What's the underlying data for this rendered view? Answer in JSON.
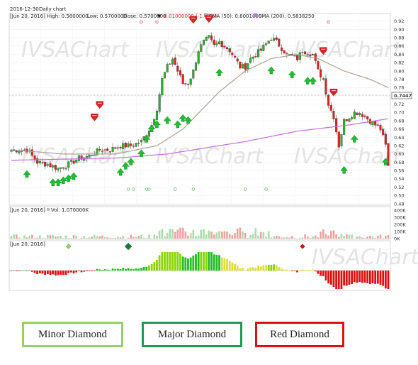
{
  "header": {
    "date": "2016-12-30",
    "period": "Daily chart",
    "panel_date": "[Jun 20, 2016]",
    "high": "High: 0.5800000",
    "low": "Low: 0.5700000",
    "close": "Close: 0.5700000",
    "change": "-0.01000000 (-1.72%)",
    "sma50": "SMA (50): 0.6001000",
    "sma200": "SMA (200): 0.5838250",
    "vol": "Vol: 1.070000K",
    "last_price": "0.7447"
  },
  "watermark": "IVSAChart",
  "colors": {
    "up": "#33aa33",
    "down": "#dd2222",
    "sma50": "#b09f90",
    "sma200": "#c070e0",
    "minor": "#93d067",
    "major": "#1f9a55",
    "red": "#dd1111"
  },
  "legend": [
    {
      "label": "Minor Diamond",
      "color": "#93d067"
    },
    {
      "label": "Major Diamond",
      "color": "#1f9a55"
    },
    {
      "label": "Red Diamond",
      "color": "#dd1111"
    }
  ],
  "chart_data": {
    "type": "candlestick",
    "price_axis": {
      "ylim": [
        0.48,
        0.93
      ],
      "ticks": [
        "0.92",
        "0.90",
        "0.88",
        "0.86",
        "0.84",
        "0.82",
        "0.80",
        "0.78",
        "0.76",
        "0.74",
        "0.72",
        "0.70",
        "0.68",
        "0.66",
        "0.64",
        "0.62",
        "0.60",
        "0.58",
        "0.56",
        "0.54",
        "0.52",
        "0.50",
        "0.48"
      ]
    },
    "volume_axis": {
      "ylim": [
        0,
        400
      ],
      "ticks": [
        "400K",
        "300K",
        "200K",
        "100K",
        "0K"
      ]
    },
    "close_waypoints": [
      [
        0,
        0.61
      ],
      [
        6,
        0.61
      ],
      [
        10,
        0.58
      ],
      [
        14,
        0.575
      ],
      [
        18,
        0.565
      ],
      [
        22,
        0.575
      ],
      [
        26,
        0.59
      ],
      [
        30,
        0.595
      ],
      [
        34,
        0.61
      ],
      [
        38,
        0.61
      ],
      [
        42,
        0.62
      ],
      [
        46,
        0.62
      ],
      [
        50,
        0.63
      ],
      [
        54,
        0.67
      ],
      [
        56,
        0.71
      ],
      [
        58,
        0.78
      ],
      [
        60,
        0.81
      ],
      [
        62,
        0.83
      ],
      [
        64,
        0.8
      ],
      [
        66,
        0.77
      ],
      [
        68,
        0.77
      ],
      [
        70,
        0.8
      ],
      [
        72,
        0.85
      ],
      [
        74,
        0.87
      ],
      [
        76,
        0.88
      ],
      [
        78,
        0.86
      ],
      [
        80,
        0.87
      ],
      [
        84,
        0.85
      ],
      [
        88,
        0.81
      ],
      [
        90,
        0.81
      ],
      [
        92,
        0.83
      ],
      [
        96,
        0.85
      ],
      [
        100,
        0.88
      ],
      [
        102,
        0.87
      ],
      [
        106,
        0.84
      ],
      [
        110,
        0.83
      ],
      [
        112,
        0.85
      ],
      [
        116,
        0.84
      ],
      [
        118,
        0.8
      ],
      [
        120,
        0.78
      ],
      [
        122,
        0.72
      ],
      [
        124,
        0.69
      ],
      [
        126,
        0.62
      ],
      [
        128,
        0.68
      ],
      [
        132,
        0.7
      ],
      [
        134,
        0.7
      ],
      [
        136,
        0.69
      ],
      [
        138,
        0.68
      ],
      [
        140,
        0.67
      ],
      [
        142,
        0.66
      ],
      [
        144,
        0.62
      ],
      [
        145,
        0.57
      ]
    ],
    "sma50_waypoints": [
      [
        0,
        0.61
      ],
      [
        20,
        0.6
      ],
      [
        40,
        0.6
      ],
      [
        56,
        0.62
      ],
      [
        66,
        0.66
      ],
      [
        80,
        0.75
      ],
      [
        90,
        0.8
      ],
      [
        100,
        0.83
      ],
      [
        110,
        0.84
      ],
      [
        118,
        0.83
      ],
      [
        128,
        0.8
      ],
      [
        138,
        0.78
      ],
      [
        145,
        0.76
      ]
    ],
    "sma200_waypoints": [
      [
        0,
        0.585
      ],
      [
        40,
        0.59
      ],
      [
        60,
        0.6
      ],
      [
        90,
        0.63
      ],
      [
        110,
        0.655
      ],
      [
        130,
        0.67
      ],
      [
        145,
        0.685
      ]
    ],
    "green_arrow_positions": [
      [
        6,
        0.55
      ],
      [
        16,
        0.53
      ],
      [
        18,
        0.53
      ],
      [
        20,
        0.535
      ],
      [
        22,
        0.54
      ],
      [
        24,
        0.545
      ],
      [
        42,
        0.555
      ],
      [
        44,
        0.57
      ],
      [
        46,
        0.58
      ],
      [
        50,
        0.6
      ],
      [
        52,
        0.635
      ],
      [
        54,
        0.66
      ],
      [
        56,
        0.67
      ],
      [
        60,
        0.68
      ],
      [
        64,
        0.67
      ],
      [
        66,
        0.685
      ],
      [
        68,
        0.68
      ],
      [
        80,
        0.795
      ],
      [
        100,
        0.8
      ],
      [
        108,
        0.79
      ],
      [
        114,
        0.775
      ],
      [
        116,
        0.775
      ],
      [
        128,
        0.56
      ],
      [
        132,
        0.635
      ],
      [
        144,
        0.58
      ]
    ],
    "red_arrow_positions": [
      [
        32,
        0.69
      ],
      [
        34,
        0.72
      ],
      [
        70,
        0.925
      ],
      [
        76,
        0.927
      ],
      [
        120,
        0.85
      ],
      [
        124,
        0.75
      ]
    ],
    "circle_marker_positions": [
      [
        45,
        0.515
      ],
      [
        47,
        0.515
      ],
      [
        52,
        0.515
      ],
      [
        53,
        0.515
      ],
      [
        63,
        0.515
      ],
      [
        70,
        0.515
      ],
      [
        90,
        0.515
      ],
      [
        98,
        0.515
      ]
    ],
    "top_circle_positions": [
      50,
      56,
      122
    ],
    "indicator_diamonds": [
      {
        "x": 22,
        "kind": "minor"
      },
      {
        "x": 45,
        "kind": "major"
      },
      {
        "x": 112,
        "kind": "red"
      }
    ]
  }
}
